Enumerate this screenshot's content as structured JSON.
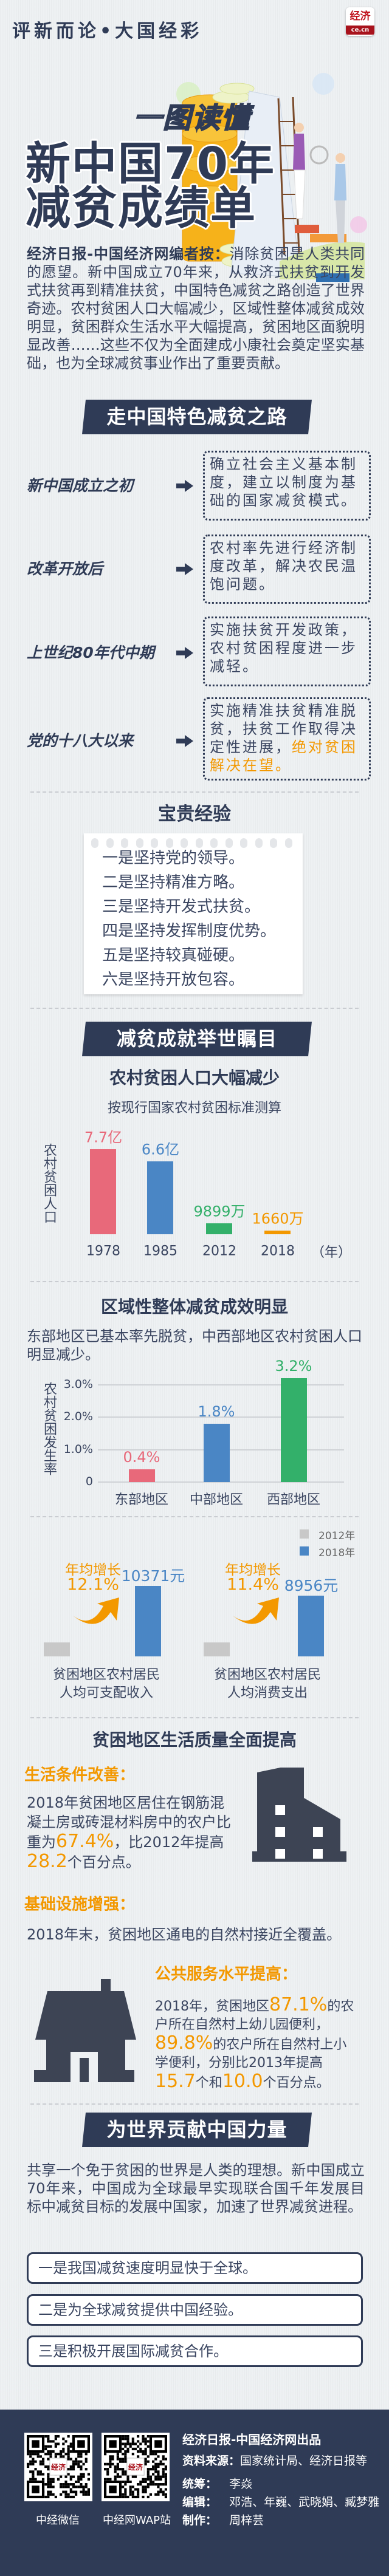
{
  "header": {
    "series_title": "评新而论•大国经彩",
    "logo_text": "经济",
    "logo_domain": "ce.cn"
  },
  "title": {
    "kicker": "一图读懂",
    "line1": "新中国70年",
    "line2": "减贫成绩单"
  },
  "intro": {
    "lead": "经济日报-中国经济网编者按：",
    "body": "消除贫困是人类共同的愿望。新中国成立70年来，从救济式扶贫到开发式扶贫再到精准扶贫，中国特色减贫之路创造了世界奇迹。农村贫困人口大幅减少，区域性整体减贫成效明显，贫困群众生活水平大幅提高，贫困地区面貌明显改善……这些不仅为全面建成小康社会奠定坚实基础，也为全球减贫事业作出了重要贡献。"
  },
  "section1": {
    "title": "走中国特色减贫之路",
    "timeline": [
      {
        "period": "新中国成立之初",
        "text": "确立社会主义基本制度，建立以制度为基础的国家减贫模式。",
        "highlight": ""
      },
      {
        "period": "改革开放后",
        "text": "农村率先进行经济制度改革，解决农民温饱问题。",
        "highlight": ""
      },
      {
        "period": "上世纪80年代中期",
        "text": "实施扶贫开发政策，农村贫困程度进一步减轻。",
        "highlight": ""
      },
      {
        "period": "党的十八大以来",
        "text": "实施精准扶贫精准脱贫，扶贫工作取得决定性进展，",
        "highlight": "绝对贫困解决在望。"
      }
    ],
    "experience_title": "宝贵经验",
    "experience": [
      "一是坚持党的领导。",
      "二是坚持精准方略。",
      "三是坚持开发式扶贫。",
      "四是坚持发挥制度优势。",
      "五是坚持较真碰硬。",
      "六是坚持开放包容。"
    ]
  },
  "section2": {
    "title": "减贫成就举世瞩目",
    "regional_desc": "东部地区已基本率先脱贫，中西部地区农村贫困人口明显减少。",
    "income_captions": [
      "贫困地区农村居民人均可支配收入",
      "贫困地区农村居民人均消费支出"
    ],
    "growth_label": "年均增长"
  },
  "chart_data": [
    {
      "type": "bar",
      "title": "农村贫困人口大幅减少",
      "subtitle": "按现行国家农村贫困标准测算",
      "ylabel": "农村贫困人口",
      "xunit": "（年）",
      "categories": [
        "1978",
        "1985",
        "2012",
        "2018"
      ],
      "values_wan": [
        77000,
        66000,
        9899,
        1660
      ],
      "labels": [
        "7.7亿",
        "6.6亿",
        "9899万",
        "1660万"
      ],
      "colors": [
        "#e8697a",
        "#4a86c5",
        "#33b06a",
        "#f39800"
      ]
    },
    {
      "type": "bar",
      "title": "区域性整体减贫成效明显",
      "ylabel": "农村贫困发生率",
      "ylim": [
        0,
        3.0
      ],
      "yticks": [
        "0",
        "1.0%",
        "2.0%",
        "3.0%"
      ],
      "grid": true,
      "categories": [
        "东部地区",
        "中部地区",
        "西部地区"
      ],
      "values": [
        0.4,
        1.8,
        3.2
      ],
      "labels": [
        "0.4%",
        "1.8%",
        "3.2%"
      ],
      "colors": [
        "#e8697a",
        "#4a86c5",
        "#33b06a"
      ]
    },
    {
      "type": "bar",
      "legend": {
        "position": "top-right",
        "items": [
          {
            "name": "2012年",
            "color": "#c8c8c8"
          },
          {
            "name": "2018年",
            "color": "#4a86c5"
          }
        ]
      },
      "categories": [
        "贫困地区农村居民人均可支配收入",
        "贫困地区农村居民人均消费支出"
      ],
      "series": [
        {
          "name": "2012年",
          "values": [
            null,
            null
          ]
        },
        {
          "name": "2018年",
          "values": [
            10371,
            8956
          ],
          "labels": [
            "10371元",
            "8956元"
          ]
        }
      ],
      "growth": [
        "12.1%",
        "11.4%"
      ]
    }
  ],
  "section3": {
    "title": "贫困地区生活质量全面提高",
    "living": {
      "heading": "生活条件改善：",
      "l1": "2018年贫困地区居住在钢筋混",
      "l2": "凝土房或砖混材料房中的农户比",
      "l3a": "重为",
      "v1": "67.4%",
      "l3b": "，比2012年提高",
      "v2": "28.2",
      "l4": "个百分点。"
    },
    "infra": {
      "heading": "基础设施增强：",
      "text": "2018年末，贫困地区通电的自然村接近全覆盖。"
    },
    "public": {
      "heading": "公共服务水平提高：",
      "p1": "2018年，贫困地区",
      "v1": "87.1%",
      "p2": "的农",
      "l2": "户所在自然村上幼儿园便利，",
      "v2": "89.8%",
      "p3": "的农户所在自然村上小",
      "l4": "学便利，分别比2013年提高",
      "v3": "15.7",
      "p4": "个和",
      "v4": "10.0",
      "p5": "个百分点。"
    }
  },
  "section4": {
    "title": "为世界贡献中国力量",
    "text": "共享一个免于贫困的世界是人类的理想。新中国成立70年来，中国成为全球最早实现联合国千年发展目标中减贫目标的发展中国家，加速了世界减贫进程。",
    "points": [
      "一是我国减贫速度明显快于全球。",
      "二是为全球减贫提供中国经验。",
      "三是积极开展国际减贫合作。"
    ]
  },
  "footer": {
    "qr": [
      {
        "label": "中经微信"
      },
      {
        "label": "中经网WAP站"
      }
    ],
    "producer": "经济日报-中国经济网出品",
    "source_label": "资料来源：",
    "source": "国家统计局、经济日报等",
    "coord_label": "统筹：",
    "coord": "李焱",
    "editor_label": "编辑：",
    "editors": "邓浩、年巍、武晓娟、臧梦雅",
    "maker_label": "制作：",
    "maker": "周梓芸"
  },
  "colors": {
    "navy": "#2f3b56",
    "orange": "#f39800",
    "text": "#3a4560"
  }
}
